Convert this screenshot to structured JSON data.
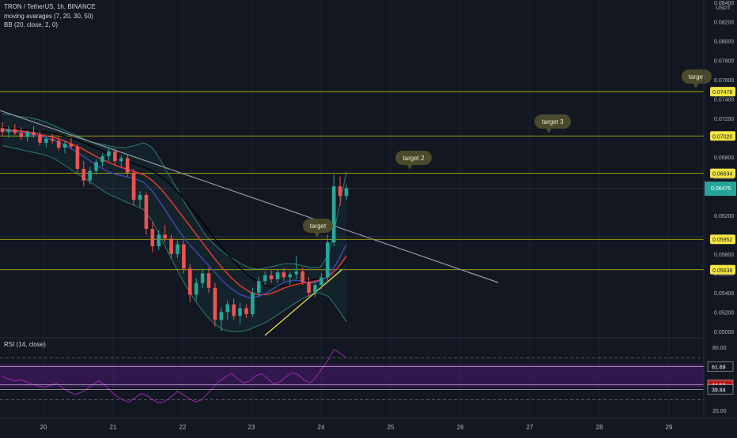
{
  "header": {
    "symbol": "TRON / TetherUS, 1h, BINANCE",
    "ma": "moving avarages (7, 20, 30, 50)",
    "bb": "BB (20, close, 2, 0)",
    "rsi": "RSI (14, close)"
  },
  "colors": {
    "background": "#131722",
    "up": "#26a69a",
    "down": "#ef5350",
    "level_line": "#c4c400",
    "level_tag_bg": "#f5e642",
    "trendline": "#9598a1",
    "rsi_band": "#6a1b9a",
    "rsi_line": "#9c27b0",
    "current_price_bg": "#26a69a",
    "bubble_bg": "#4a4a2c"
  },
  "chart_data": {
    "type": "candlestick",
    "pair": "TRX/USDT",
    "timeframe": "1h",
    "ylim": [
      0.0496,
      0.0835
    ],
    "y_unit": "USDT",
    "y_ticks": [
      "0.08400",
      "0.08200",
      "0.08000",
      "0.07800",
      "0.07600",
      "0.07400",
      "0.07200",
      "0.06800",
      "0.06600",
      "0.06200",
      "0.05800",
      "0.05600",
      "0.05400",
      "0.05200",
      "0.05000"
    ],
    "x_ticks": [
      "20",
      "21",
      "22",
      "23",
      "24",
      "25",
      "26",
      "27",
      "28",
      "29"
    ],
    "levels": [
      {
        "value": "0.07478",
        "price": 0.07478
      },
      {
        "value": "0.07020",
        "price": 0.0702
      },
      {
        "value": "0.06634",
        "price": 0.06634
      },
      {
        "value": "0.05952",
        "price": 0.05952
      },
      {
        "value": "0.05638",
        "price": 0.05638
      }
    ],
    "current_price": {
      "value": "0.06475",
      "price": 0.06475
    },
    "annotations": [
      "target",
      "target 3",
      "target 2",
      "target"
    ],
    "rsi": {
      "levels": [
        "61.69",
        "44.50",
        "39.84"
      ],
      "y_ticks": [
        "80.00",
        "20.00"
      ],
      "ylim": [
        20,
        80
      ]
    },
    "ohlc_hourly": [
      [
        0.071,
        0.0716,
        0.0702,
        0.0706
      ],
      [
        0.0706,
        0.0712,
        0.07,
        0.0709
      ],
      [
        0.0709,
        0.0714,
        0.0703,
        0.0705
      ],
      [
        0.0705,
        0.0711,
        0.0698,
        0.0701
      ],
      [
        0.0701,
        0.0708,
        0.0696,
        0.0706
      ],
      [
        0.0706,
        0.0712,
        0.07,
        0.0703
      ],
      [
        0.0703,
        0.0707,
        0.0692,
        0.0695
      ],
      [
        0.0695,
        0.0702,
        0.069,
        0.0699
      ],
      [
        0.0699,
        0.0704,
        0.0694,
        0.0697
      ],
      [
        0.0697,
        0.0701,
        0.0687,
        0.069
      ],
      [
        0.069,
        0.0697,
        0.0684,
        0.0694
      ],
      [
        0.0694,
        0.07,
        0.0688,
        0.0691
      ],
      [
        0.0691,
        0.0694,
        0.0664,
        0.0668
      ],
      [
        0.0668,
        0.0676,
        0.065,
        0.0656
      ],
      [
        0.0656,
        0.067,
        0.0652,
        0.0666
      ],
      [
        0.0666,
        0.0678,
        0.0662,
        0.0675
      ],
      [
        0.0675,
        0.0684,
        0.067,
        0.0681
      ],
      [
        0.0681,
        0.069,
        0.0676,
        0.0686
      ],
      [
        0.0686,
        0.0689,
        0.0672,
        0.0676
      ],
      [
        0.0676,
        0.0682,
        0.067,
        0.0679
      ],
      [
        0.0679,
        0.0683,
        0.066,
        0.0664
      ],
      [
        0.0664,
        0.0668,
        0.063,
        0.0636
      ],
      [
        0.0636,
        0.0645,
        0.0628,
        0.0641
      ],
      [
        0.0641,
        0.0644,
        0.06,
        0.0606
      ],
      [
        0.0606,
        0.0613,
        0.0582,
        0.0588
      ],
      [
        0.0588,
        0.0605,
        0.0584,
        0.06
      ],
      [
        0.06,
        0.061,
        0.0592,
        0.0596
      ],
      [
        0.0596,
        0.06,
        0.0575,
        0.058
      ],
      [
        0.058,
        0.0594,
        0.0576,
        0.059
      ],
      [
        0.059,
        0.0594,
        0.056,
        0.0565
      ],
      [
        0.0565,
        0.057,
        0.053,
        0.0538
      ],
      [
        0.0538,
        0.0555,
        0.0532,
        0.055
      ],
      [
        0.055,
        0.0565,
        0.0545,
        0.056
      ],
      [
        0.056,
        0.0566,
        0.054,
        0.0545
      ],
      [
        0.0545,
        0.055,
        0.0505,
        0.0512
      ],
      [
        0.0512,
        0.0525,
        0.05,
        0.052
      ],
      [
        0.052,
        0.0532,
        0.0512,
        0.0528
      ],
      [
        0.0528,
        0.0534,
        0.0512,
        0.0516
      ],
      [
        0.0516,
        0.053,
        0.0508,
        0.0524
      ],
      [
        0.0524,
        0.0528,
        0.0514,
        0.0518
      ],
      [
        0.0518,
        0.0545,
        0.0515,
        0.054
      ],
      [
        0.054,
        0.0556,
        0.0536,
        0.0552
      ],
      [
        0.0552,
        0.0562,
        0.0548,
        0.0558
      ],
      [
        0.0558,
        0.0563,
        0.055,
        0.0554
      ],
      [
        0.0554,
        0.0564,
        0.055,
        0.0561
      ],
      [
        0.0561,
        0.0566,
        0.0552,
        0.0556
      ],
      [
        0.0556,
        0.0562,
        0.0548,
        0.0559
      ],
      [
        0.0559,
        0.0578,
        0.0554,
        0.0562
      ],
      [
        0.0562,
        0.0566,
        0.0548,
        0.0551
      ],
      [
        0.0551,
        0.0556,
        0.0536,
        0.054
      ],
      [
        0.054,
        0.0552,
        0.0535,
        0.0548
      ],
      [
        0.0548,
        0.056,
        0.0544,
        0.0556
      ],
      [
        0.0556,
        0.06,
        0.0552,
        0.0592
      ],
      [
        0.0592,
        0.0662,
        0.0588,
        0.065
      ],
      [
        0.065,
        0.066,
        0.063,
        0.064
      ],
      [
        0.064,
        0.0652,
        0.0636,
        0.0648
      ]
    ],
    "ma_fast": [
      0.0708,
      0.0707,
      0.0706,
      0.0704,
      0.0702,
      0.07,
      0.0697,
      0.0693,
      0.0688,
      0.0682,
      0.0676,
      0.067,
      0.0665,
      0.0662,
      0.066,
      0.0658,
      0.0654,
      0.0645,
      0.0632,
      0.0618,
      0.0604,
      0.0592,
      0.0582,
      0.0572,
      0.0562,
      0.0552,
      0.0544,
      0.0538,
      0.0535,
      0.0536,
      0.054,
      0.0546,
      0.0551,
      0.0553,
      0.0552,
      0.055,
      0.0552,
      0.0558,
      0.0572,
      0.059
    ],
    "ma_mid": [
      0.0709,
      0.0708,
      0.0707,
      0.0706,
      0.0704,
      0.0702,
      0.07,
      0.0697,
      0.0693,
      0.0689,
      0.0684,
      0.0679,
      0.0675,
      0.0671,
      0.0668,
      0.0665,
      0.0662,
      0.0656,
      0.0647,
      0.0636,
      0.0624,
      0.0612,
      0.06,
      0.0588,
      0.0576,
      0.0565,
      0.0555,
      0.0547,
      0.0541,
      0.0538,
      0.0538,
      0.0541,
      0.0545,
      0.0548,
      0.055,
      0.0551,
      0.0553,
      0.0557,
      0.0565,
      0.0578
    ],
    "ma_slow": [
      0.0711,
      0.071,
      0.0709,
      0.0708,
      0.0707,
      0.0706,
      0.0704,
      0.0702,
      0.0699,
      0.0696,
      0.0692,
      0.0688,
      0.0684,
      0.068,
      0.0676,
      0.0673,
      0.067,
      0.0666,
      0.066,
      0.0652,
      0.0643,
      0.0632,
      0.0621,
      0.0609,
      0.0597,
      0.0586,
      0.0575,
      0.0565,
      0.0557,
      0.0551,
      0.0547,
      0.0546,
      0.0547,
      0.0549,
      0.0551,
      0.0553,
      0.0555,
      0.0558,
      0.0563,
      0.0572
    ],
    "bb_upper": [
      0.0725,
      0.0724,
      0.0722,
      0.0721,
      0.0719,
      0.0716,
      0.0712,
      0.0708,
      0.0704,
      0.07,
      0.0696,
      0.0694,
      0.0692,
      0.069,
      0.069,
      0.0692,
      0.0695,
      0.069,
      0.0676,
      0.066,
      0.0644,
      0.0628,
      0.0614,
      0.06,
      0.059,
      0.0582,
      0.0576,
      0.057,
      0.0566,
      0.0564,
      0.0566,
      0.0568,
      0.057,
      0.057,
      0.0568,
      0.0566,
      0.0566,
      0.058,
      0.062,
      0.0665
    ],
    "bb_lower": [
      0.0692,
      0.069,
      0.0688,
      0.0686,
      0.0684,
      0.0682,
      0.0678,
      0.0672,
      0.0666,
      0.066,
      0.0654,
      0.0648,
      0.0642,
      0.0638,
      0.0634,
      0.063,
      0.0626,
      0.0614,
      0.0596,
      0.0578,
      0.056,
      0.0544,
      0.053,
      0.0518,
      0.0508,
      0.0502,
      0.05,
      0.05,
      0.0502,
      0.0506,
      0.051,
      0.0516,
      0.0522,
      0.0528,
      0.0534,
      0.0538,
      0.054,
      0.0536,
      0.0524,
      0.051
    ],
    "rsi_values": [
      52,
      50,
      48,
      49,
      47,
      45,
      43,
      42,
      44,
      46,
      41,
      38,
      35,
      37,
      40,
      45,
      48,
      44,
      38,
      33,
      30,
      28,
      32,
      36,
      34,
      30,
      27,
      29,
      33,
      38,
      35,
      31,
      28,
      30,
      36,
      42,
      48,
      52,
      55,
      50,
      46,
      48,
      53,
      55,
      50,
      45,
      47,
      52,
      56,
      54,
      49,
      46,
      52,
      60,
      68,
      78,
      74,
      70
    ]
  }
}
